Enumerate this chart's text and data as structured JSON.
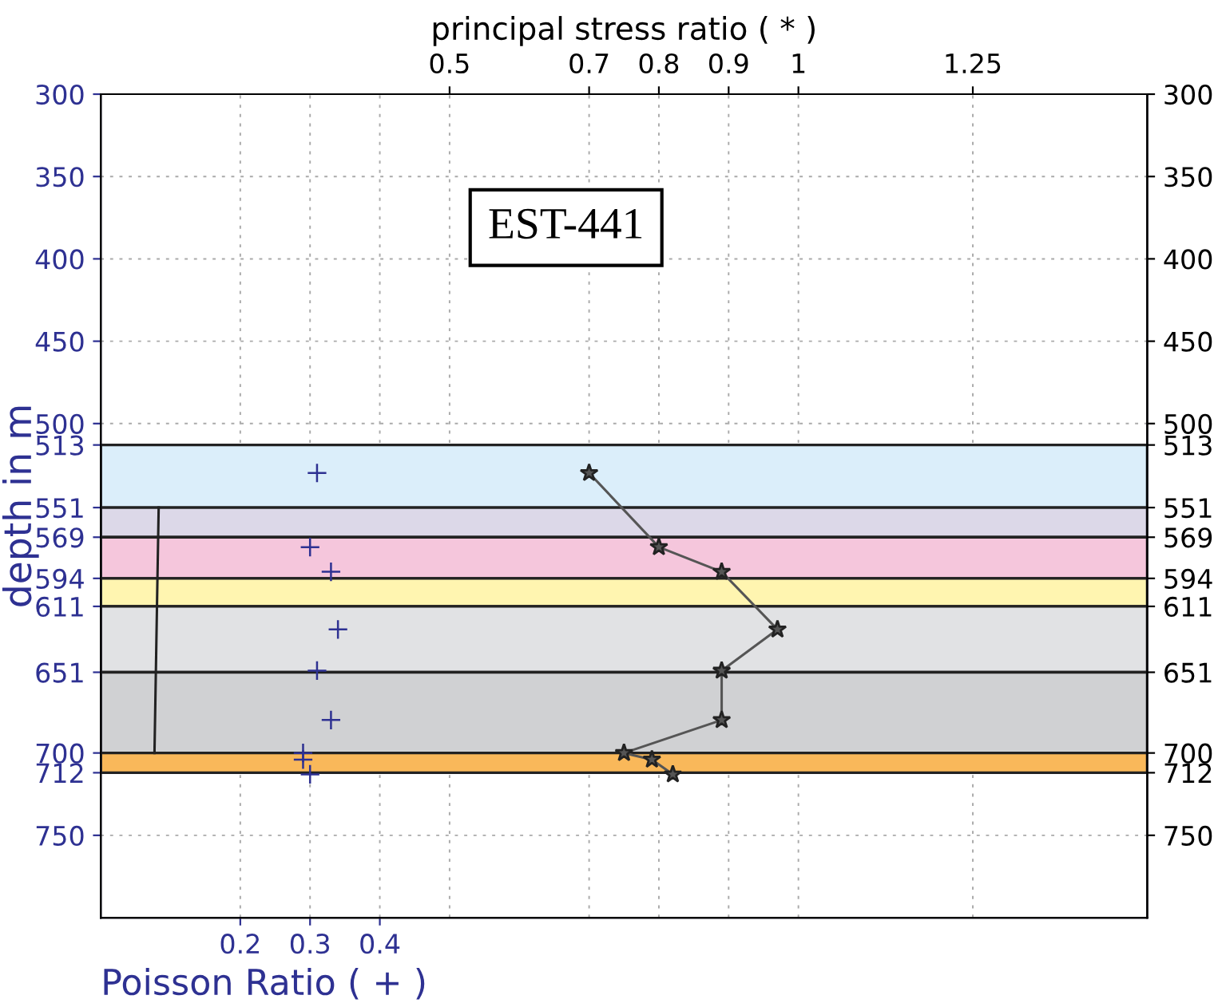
{
  "chart_data": {
    "type": "scatter",
    "xlabel": "Poisson Ratio ( + )",
    "x2label": "principal stress ratio ( * )",
    "ylabel": "depth in m",
    "xlim": [
      0,
      1.5
    ],
    "xticks": [
      0.2,
      0.3,
      0.4
    ],
    "x2lim": [
      0,
      1.5
    ],
    "x2ticks": [
      0.5,
      0.7,
      0.8,
      0.9,
      1,
      1.25
    ],
    "ylim": [
      800,
      300
    ],
    "yticks": [
      300,
      350,
      400,
      450,
      500,
      513,
      551,
      569,
      594,
      611,
      651,
      700,
      712,
      750
    ],
    "y2lim": [
      800,
      300
    ],
    "y2ticks": [
      300,
      350,
      400,
      450,
      500,
      513,
      551,
      569,
      594,
      611,
      651,
      700,
      712,
      750
    ],
    "grid": true,
    "legend": false,
    "annotations": [
      "EST-441"
    ],
    "bands": [
      {
        "axis": "y",
        "from": 513,
        "to": 551,
        "color": "#dbeefa"
      },
      {
        "axis": "y",
        "from": 551,
        "to": 569,
        "color": "#dcd8e8"
      },
      {
        "axis": "y",
        "from": 569,
        "to": 594,
        "color": "#f5c6dc"
      },
      {
        "axis": "y",
        "from": 594,
        "to": 611,
        "color": "#fff5b0"
      },
      {
        "axis": "y",
        "from": 611,
        "to": 651,
        "color": "#e1e2e4"
      },
      {
        "axis": "y",
        "from": 651,
        "to": 700,
        "color": "#d0d1d3"
      },
      {
        "axis": "y",
        "from": 700,
        "to": 712,
        "color": "#f9b85a"
      }
    ],
    "series": [
      {
        "type": "line",
        "color": "#222222",
        "marker": "none",
        "x": [
          0.083,
          0.077
        ],
        "values": [
          551,
          700
        ]
      },
      {
        "color": "#2e3192",
        "marker": "cross",
        "x": [
          0.31,
          0.3,
          0.33,
          0.34,
          0.31,
          0.33,
          0.29,
          0.29,
          0.3
        ],
        "values": [
          530,
          575,
          590,
          625,
          650,
          680,
          700,
          704,
          713
        ]
      },
      {
        "type": "line",
        "color": "#555555",
        "marker": "star",
        "x": [
          0.7,
          0.8,
          0.89,
          0.97,
          0.89,
          0.89,
          0.75,
          0.79,
          0.82
        ],
        "values": [
          530,
          575,
          590,
          625,
          650,
          680,
          700,
          704,
          713
        ]
      }
    ]
  }
}
